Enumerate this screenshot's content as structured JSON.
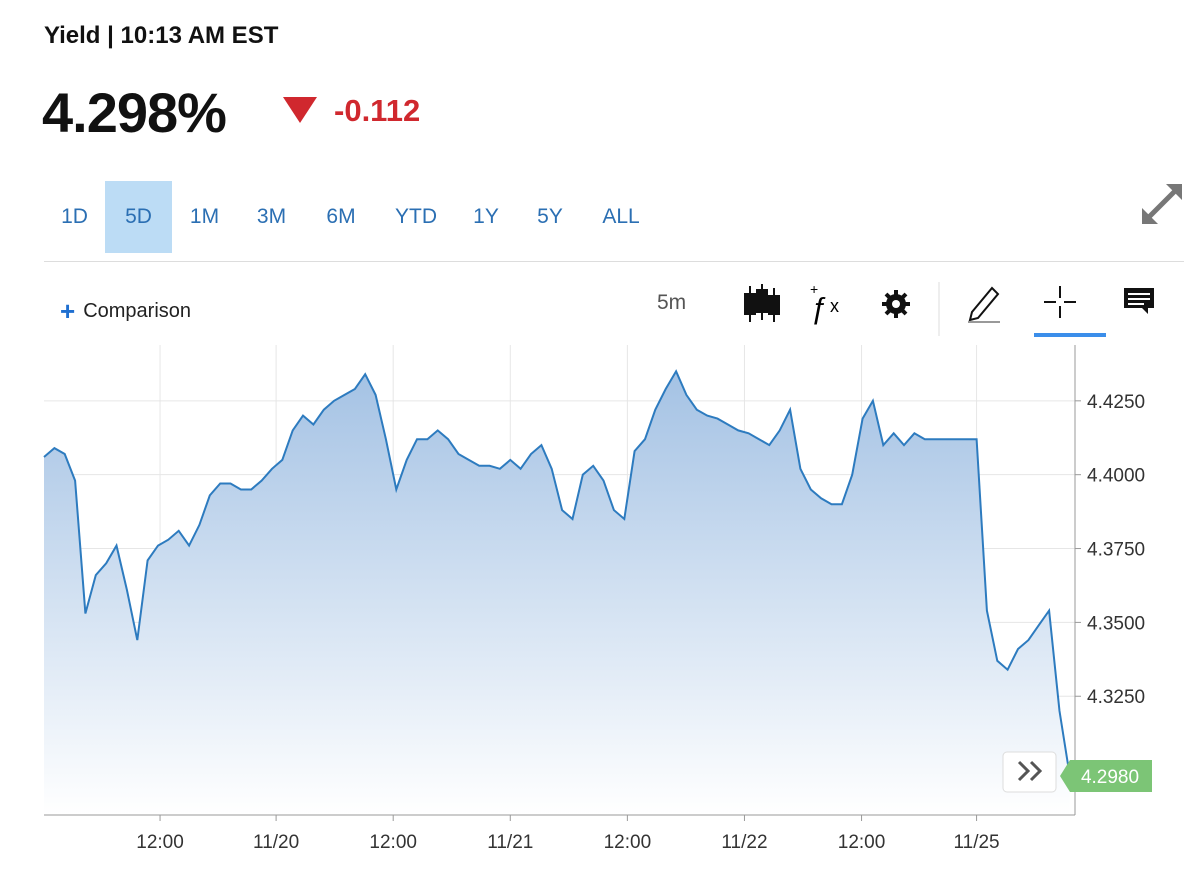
{
  "header": {
    "title": "Yield",
    "time": "10:13 AM EST",
    "price": "4.298%",
    "change": "-0.112"
  },
  "ranges": [
    "1D",
    "5D",
    "1M",
    "3M",
    "6M",
    "YTD",
    "1Y",
    "5Y",
    "ALL"
  ],
  "selected_range": 1,
  "toolbar": {
    "comparison": "Comparison",
    "interval": "5m"
  },
  "chart_data": {
    "type": "area",
    "color": "#2d7bbf",
    "grid": true,
    "values": [
      4.406,
      4.409,
      4.407,
      4.398,
      4.353,
      4.366,
      4.37,
      4.376,
      4.361,
      4.344,
      4.371,
      4.376,
      4.378,
      4.381,
      4.376,
      4.383,
      4.393,
      4.397,
      4.397,
      4.395,
      4.395,
      4.398,
      4.402,
      4.405,
      4.415,
      4.42,
      4.417,
      4.422,
      4.425,
      4.427,
      4.429,
      4.434,
      4.427,
      4.412,
      4.395,
      4.405,
      4.412,
      4.412,
      4.415,
      4.412,
      4.407,
      4.405,
      4.403,
      4.403,
      4.402,
      4.405,
      4.402,
      4.407,
      4.41,
      4.402,
      4.388,
      4.385,
      4.4,
      4.403,
      4.398,
      4.388,
      4.385,
      4.408,
      4.412,
      4.422,
      4.429,
      4.435,
      4.427,
      4.422,
      4.42,
      4.419,
      4.417,
      4.415,
      4.414,
      4.412,
      4.41,
      4.415,
      4.422,
      4.402,
      4.395,
      4.392,
      4.39,
      4.39,
      4.4,
      4.419,
      4.425,
      4.41,
      4.414,
      4.41,
      4.414,
      4.412,
      4.412,
      4.412,
      4.412,
      4.412,
      4.412,
      4.354,
      4.337,
      4.334,
      4.341,
      4.344,
      4.349,
      4.354,
      4.32,
      4.298
    ],
    "xlim": [
      0,
      99.5
    ],
    "xticks": [
      {
        "value": 11.2,
        "label": "12:00"
      },
      {
        "value": 22.4,
        "label": "11/20"
      },
      {
        "value": 33.7,
        "label": "12:00"
      },
      {
        "value": 45.0,
        "label": "11/21"
      },
      {
        "value": 56.3,
        "label": "12:00"
      },
      {
        "value": 67.6,
        "label": "11/22"
      },
      {
        "value": 78.9,
        "label": "12:00"
      },
      {
        "value": 90.0,
        "label": "11/25"
      }
    ],
    "ylim": [
      4.2848,
      4.4439
    ],
    "yticks": [
      {
        "value": 4.325,
        "label": "4.3250"
      },
      {
        "value": 4.35,
        "label": "4.3500"
      },
      {
        "value": 4.375,
        "label": "4.3750"
      },
      {
        "value": 4.4,
        "label": "4.4000"
      },
      {
        "value": 4.425,
        "label": "4.4250"
      }
    ],
    "last_price": {
      "value": 4.298,
      "label": "4.2980"
    }
  }
}
